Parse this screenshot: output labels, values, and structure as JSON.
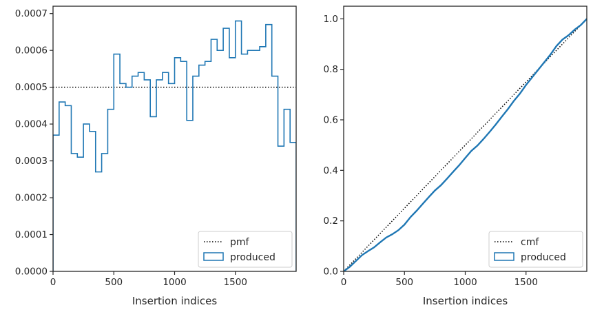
{
  "chart_data": [
    {
      "type": "histogram-step",
      "title": "",
      "xlabel": "Insertion indices",
      "ylabel": "",
      "xlim": [
        0,
        2000
      ],
      "ylim": [
        0,
        0.00072
      ],
      "xticks": [
        0,
        500,
        1000,
        1500
      ],
      "xtick_labels": [
        "0",
        "500",
        "1000",
        "1500"
      ],
      "yticks": [
        0,
        0.0001,
        0.0002,
        0.0003,
        0.0004,
        0.0005,
        0.0006,
        0.0007
      ],
      "ytick_labels": [
        "0.0000",
        "0.0001",
        "0.0002",
        "0.0003",
        "0.0004",
        "0.0005",
        "0.0006",
        "0.0007"
      ],
      "grid": false,
      "legend_position": "lower-right",
      "reference_line": {
        "name": "pmf",
        "y": 0.0005,
        "style": "dotted",
        "color": "#000000"
      },
      "series": [
        {
          "name": "produced",
          "color": "#1f77b4",
          "bin_edges": [
            0,
            50,
            100,
            150,
            200,
            250,
            300,
            350,
            400,
            450,
            500,
            550,
            600,
            650,
            700,
            750,
            800,
            850,
            900,
            950,
            1000,
            1050,
            1100,
            1150,
            1200,
            1250,
            1300,
            1350,
            1400,
            1450,
            1500,
            1550,
            1600,
            1650,
            1700,
            1750,
            1800,
            1850,
            1900,
            1950,
            2000
          ],
          "values": [
            0.00037,
            0.00046,
            0.00045,
            0.00032,
            0.00031,
            0.0004,
            0.00038,
            0.00027,
            0.00032,
            0.00044,
            0.00059,
            0.00051,
            0.0005,
            0.00053,
            0.00054,
            0.00052,
            0.00042,
            0.00052,
            0.00054,
            0.00051,
            0.00058,
            0.00057,
            0.00041,
            0.00053,
            0.00056,
            0.00057,
            0.00063,
            0.0006,
            0.00066,
            0.00058,
            0.00068,
            0.00059,
            0.0006,
            0.0006,
            0.00061,
            0.00067,
            0.00053,
            0.00034,
            0.00044,
            0.00035
          ]
        }
      ]
    },
    {
      "type": "line",
      "title": "",
      "xlabel": "Insertion indices",
      "ylabel": "",
      "xlim": [
        0,
        2000
      ],
      "ylim": [
        0,
        1.05
      ],
      "xticks": [
        0,
        500,
        1000,
        1500
      ],
      "xtick_labels": [
        "0",
        "500",
        "1000",
        "1500"
      ],
      "yticks": [
        0,
        0.2,
        0.4,
        0.6,
        0.8,
        1.0
      ],
      "ytick_labels": [
        "0.0",
        "0.2",
        "0.4",
        "0.6",
        "0.8",
        "1.0"
      ],
      "grid": false,
      "legend_position": "lower-right",
      "reference_line": {
        "name": "cmf",
        "from": [
          0,
          0
        ],
        "to": [
          2000,
          1.0
        ],
        "style": "dotted",
        "color": "#000000"
      },
      "series": [
        {
          "name": "produced",
          "color": "#1f77b4",
          "x": [
            0,
            50,
            100,
            150,
            200,
            250,
            300,
            350,
            400,
            450,
            500,
            550,
            600,
            650,
            700,
            750,
            800,
            850,
            900,
            950,
            1000,
            1050,
            1100,
            1150,
            1200,
            1250,
            1300,
            1350,
            1400,
            1450,
            1500,
            1550,
            1600,
            1650,
            1700,
            1750,
            1800,
            1850,
            1900,
            1950,
            2000
          ],
          "y": [
            0.0,
            0.018,
            0.041,
            0.064,
            0.08,
            0.095,
            0.115,
            0.134,
            0.147,
            0.163,
            0.185,
            0.215,
            0.24,
            0.267,
            0.294,
            0.32,
            0.341,
            0.367,
            0.394,
            0.42,
            0.449,
            0.477,
            0.498,
            0.524,
            0.552,
            0.581,
            0.612,
            0.642,
            0.675,
            0.704,
            0.738,
            0.768,
            0.798,
            0.828,
            0.858,
            0.892,
            0.918,
            0.935,
            0.957,
            0.975,
            1.0
          ]
        }
      ]
    }
  ]
}
